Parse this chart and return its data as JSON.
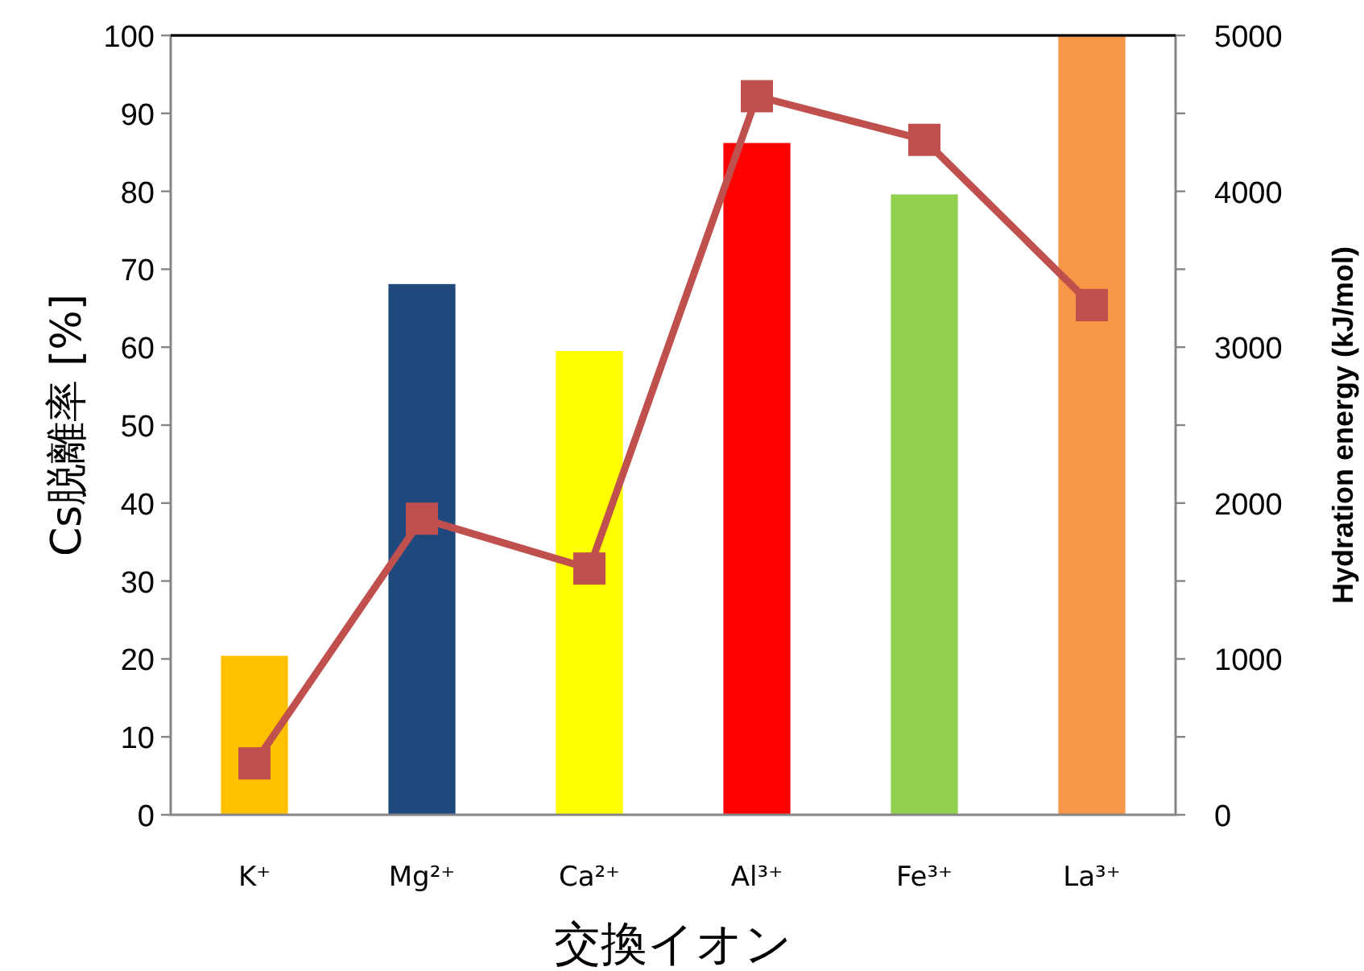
{
  "chart_data": {
    "type": "bar",
    "xlabel": "交換イオン",
    "ylabel": "Cs脱離率 [%]",
    "y2label": "Hydration energy (kJ/mol)",
    "categories": [
      "K⁺",
      "Mg²⁺",
      "Ca²⁺",
      "Al³⁺",
      "Fe³⁺",
      "La³⁺"
    ],
    "ylim": [
      0,
      100
    ],
    "yticks": [
      0,
      10,
      20,
      30,
      40,
      50,
      60,
      70,
      80,
      90,
      100
    ],
    "y2lim": [
      0,
      5000
    ],
    "y2ticks": [
      0,
      {
        "value": 500,
        "label": null
      },
      1000,
      {
        "value": 1500,
        "label": null
      },
      2000,
      {
        "value": 2500,
        "label": null
      },
      3000,
      {
        "value": 3500,
        "label": null
      },
      4000,
      {
        "value": 4500,
        "label": null
      },
      5000
    ],
    "series": [
      {
        "colors": [
          "#ffc000",
          "#1f497d",
          "#ffff00",
          "#ff0000",
          "#92d050",
          "#f79646"
        ],
        "values": [
          20.4,
          68.1,
          59.5,
          86.2,
          79.6,
          100
        ]
      },
      {
        "type": "line",
        "axis": "y2",
        "color": "#c0504d",
        "marker": "square",
        "values": [
          330,
          1900,
          1580,
          4610,
          4330,
          3270
        ]
      }
    ]
  }
}
